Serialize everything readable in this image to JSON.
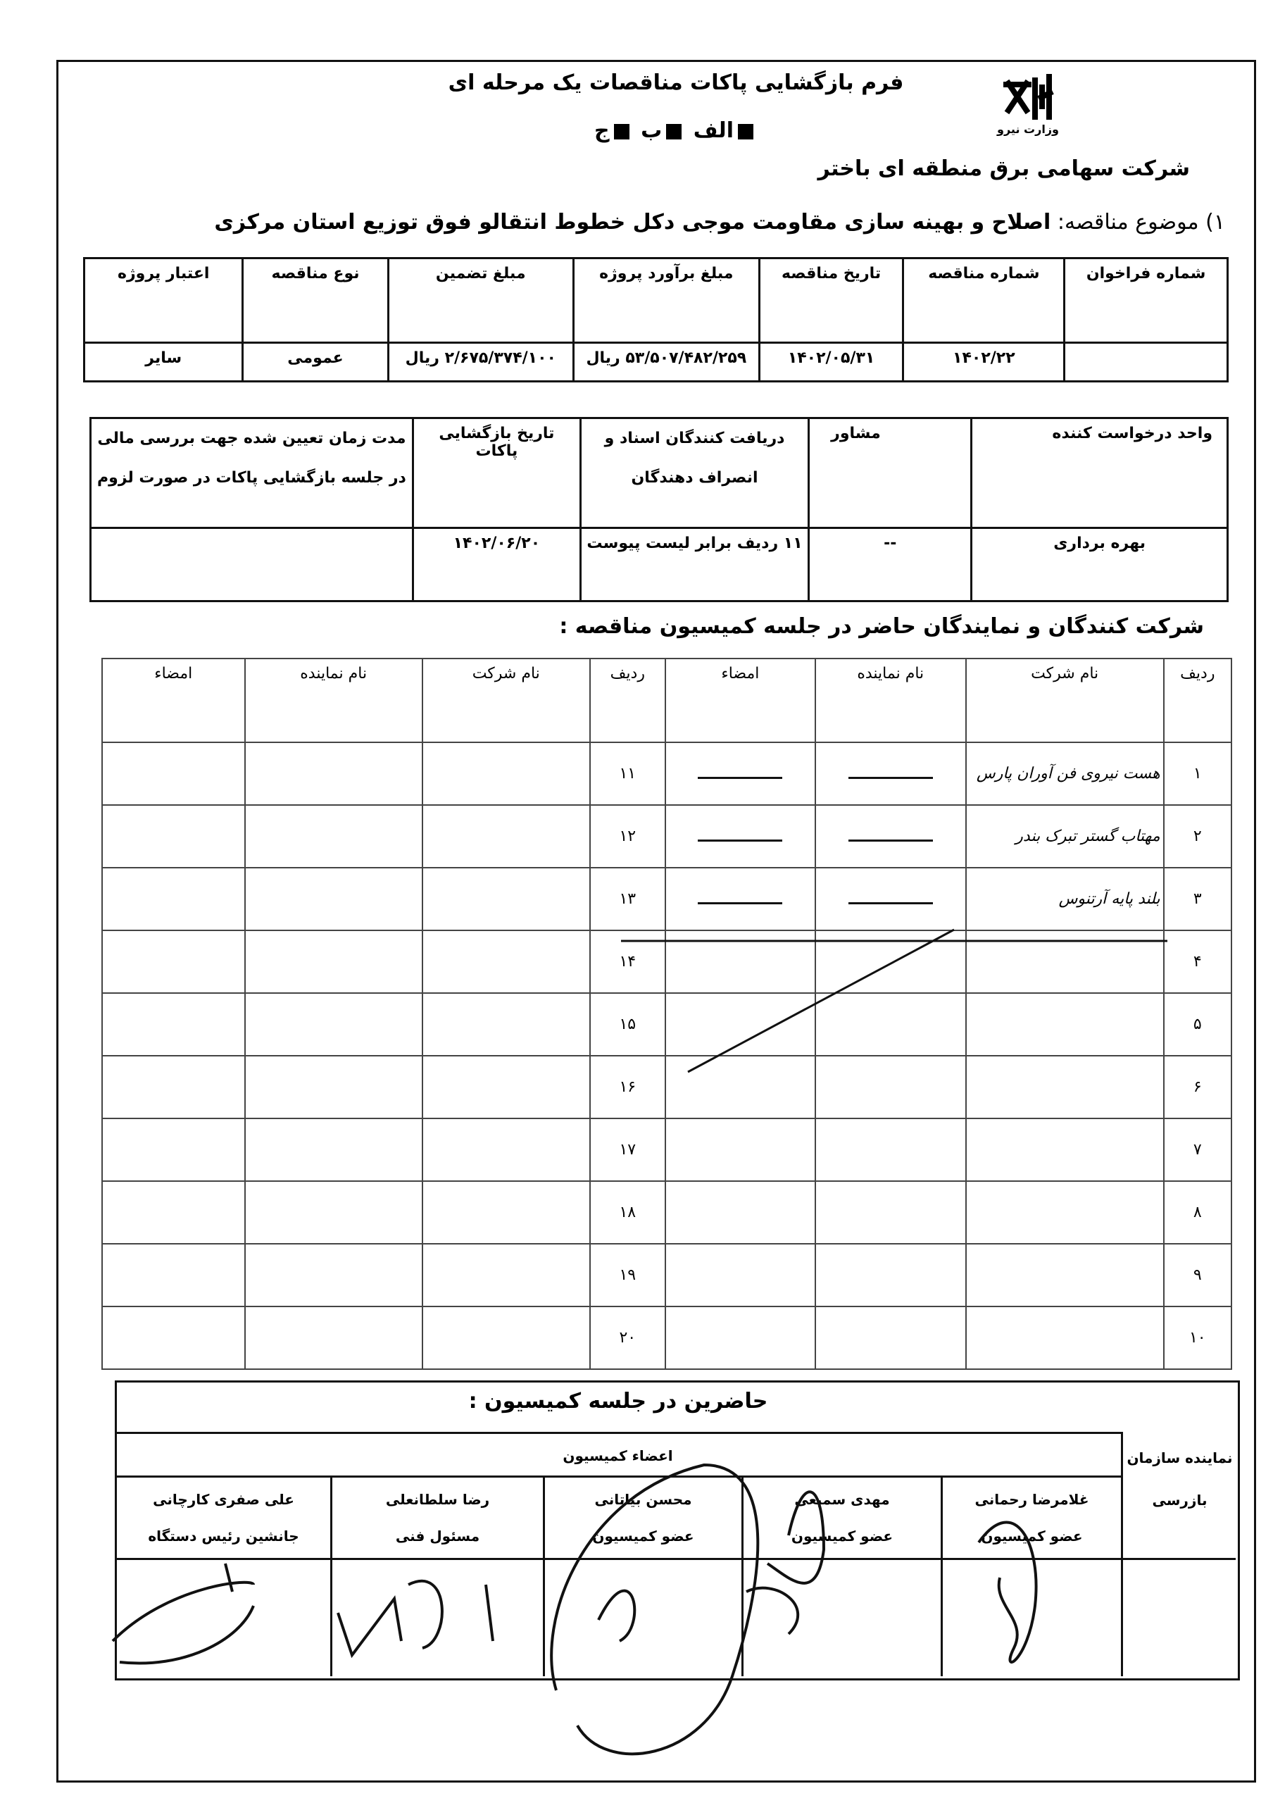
{
  "header": {
    "title": "فرم بازگشایی پاکات مناقصات یک مرحله ای",
    "options": [
      "الف",
      "ب",
      "ج"
    ],
    "logo_text": "وزارت نیرو",
    "company": "شرکت سهامی برق منطقه ای باختر",
    "subject_label": "۱) موضوع مناقصه:",
    "subject": "اصلاح و بهینه سازی مقاومت موجی دکل خطوط انتقالو فوق توزیع استان مرکزی"
  },
  "table1": {
    "headers": [
      "شماره فراخوان",
      "شماره مناقصه",
      "تاریخ مناقصه",
      "مبلغ برآورد پروژه",
      "مبلغ تضمین",
      "نوع مناقصه",
      "اعتبار پروژه"
    ],
    "values": [
      "",
      "۱۴۰۲/۲۲",
      "۱۴۰۲/۰۵/۳۱",
      "۵۳/۵۰۷/۴۸۲/۲۵۹ ریال",
      "۲/۶۷۵/۳۷۴/۱۰۰ ریال",
      "عمومی",
      "سایر"
    ]
  },
  "table2": {
    "headers": [
      "واحد درخواست کننده",
      "مشاور",
      "دریافت کنندگان اسناد و انصراف دهندگان",
      "تاریخ بازگشایی پاکات",
      "مدت زمان تعیین شده جهت بررسی مالی در جلسه بازگشایی پاکات در صورت لزوم"
    ],
    "values": [
      "بهره برداری",
      "--",
      "۱۱ ردیف برابر لیست پیوست",
      "۱۴۰۲/۰۶/۲۰",
      ""
    ]
  },
  "participants": {
    "heading": "شرکت کنندگان و نمایندگان حاضر در جلسه کمیسیون مناقصه :",
    "headers": [
      "ردیف",
      "نام شرکت",
      "نام نماینده",
      "امضاء",
      "ردیف",
      "نام شرکت",
      "نام نماینده",
      "امضاء"
    ],
    "left_rows": [
      "۱",
      "۲",
      "۳",
      "۴",
      "۵",
      "۶",
      "۷",
      "۸",
      "۹",
      "۱۰"
    ],
    "right_rows": [
      "۱۱",
      "۱۲",
      "۱۳",
      "۱۴",
      "۱۵",
      "۱۶",
      "۱۷",
      "۱۸",
      "۱۹",
      "۲۰"
    ],
    "companies": [
      "هست نیروی فن آوران پارس",
      "مهتاب گستر تبرک بندر",
      "بلند پایه آرتنوس"
    ]
  },
  "commission": {
    "heading": "حاضرین در جلسه کمیسیون :",
    "inspector_label": "نماینده سازمان",
    "inspector_value": "بازرسی",
    "members_label": "اعضاء کمیسیون",
    "members": [
      {
        "name": "غلامرضا رحمانی",
        "role": "عضو کمیسیون"
      },
      {
        "name": "مهدی سمیعی",
        "role": "عضو کمیسیون"
      },
      {
        "name": "محسن بیاتانی",
        "role": "عضو کمیسیون"
      },
      {
        "name": "رضا سلطانعلی",
        "role": "مسئول فنی"
      },
      {
        "name": "علی صفری کارچانی",
        "role": "جانشین رئیس دستگاه"
      }
    ]
  }
}
